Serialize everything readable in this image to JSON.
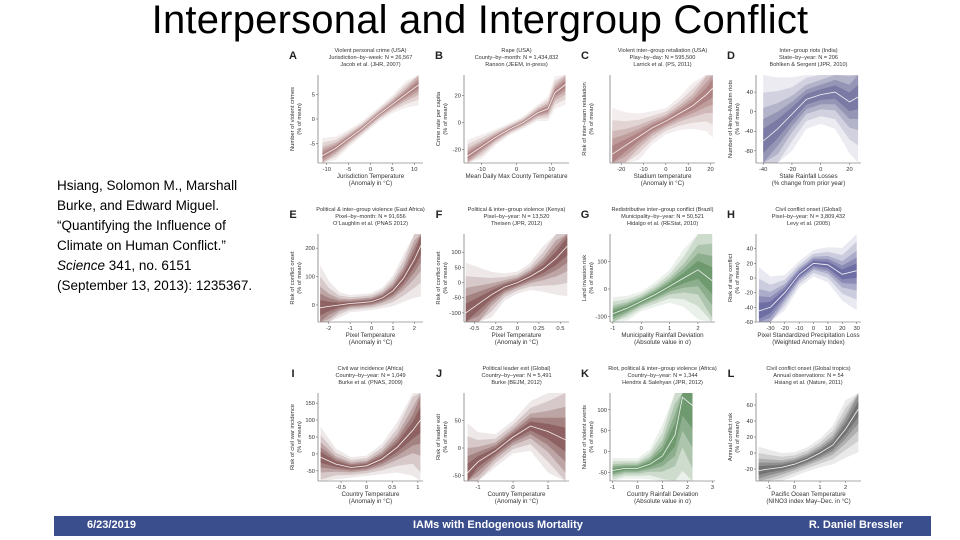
{
  "slide": {
    "title": "Interpersonal and Intergroup Conflict",
    "citation": {
      "authors": "Hsiang, Solomon M., Marshall Burke, and Edward Miguel.",
      "article": "“Quantifying the Influence of Climate on Human Conflict.”",
      "journal": "Science",
      "details": "341, no. 6151 (September 13, 2013): 1235367."
    },
    "footer": {
      "date": "6/23/2019",
      "center": "IAMs with Endogenous Mortality",
      "author": "R. Daniel Bressler"
    }
  },
  "chart_data": [
    {
      "panel": "A",
      "type": "area",
      "color": "#8b4a4a",
      "header": [
        "Violent personal crime (USA)",
        "Jurisdiction–by–week: N = 26,567",
        "Jacob et al. (JHR, 2007)"
      ],
      "ylabel": [
        "Number of violent crimes",
        "(% of mean)"
      ],
      "xlabel": [
        "Jurisdiction Temperature",
        "(Anomaly in °C)"
      ],
      "xlim": [
        -12,
        12
      ],
      "ylim": [
        -9,
        9
      ],
      "xticks": [
        -10,
        -5,
        0,
        5,
        10
      ],
      "yticks": [
        -5,
        0,
        5
      ],
      "x": [
        -11,
        -8,
        -5,
        -2,
        0,
        2,
        5,
        8,
        11
      ],
      "y": [
        -7.5,
        -6,
        -4,
        -2,
        -0.5,
        1,
        3,
        5,
        7
      ],
      "band": [
        1.2,
        0.8,
        0.6,
        0.5,
        0.5,
        0.5,
        0.6,
        0.9,
        1.4
      ]
    },
    {
      "panel": "B",
      "type": "area",
      "color": "#8b4a4a",
      "header": [
        "Rape (USA)",
        "County–by–month: N = 1,434,832",
        "Ranson (JEEM, in-press)"
      ],
      "ylabel": [
        "Crime rate per capita",
        "(% of mean)"
      ],
      "xlabel": [
        "Mean Daily Max County Temperature",
        ""
      ],
      "xlim": [
        -15,
        15
      ],
      "ylim": [
        -30,
        35
      ],
      "xticks": [
        -10,
        0,
        10
      ],
      "yticks": [
        -20,
        0,
        20
      ],
      "x": [
        -14,
        -10,
        -6,
        -2,
        2,
        6,
        9,
        11,
        14
      ],
      "y": [
        -25,
        -18,
        -11,
        -5,
        0,
        7,
        10,
        22,
        28
      ],
      "band": [
        4,
        3,
        2,
        1.5,
        1.5,
        2,
        3,
        4,
        5
      ]
    },
    {
      "panel": "C",
      "type": "area",
      "color": "#8b4a4a",
      "header": [
        "Violent inter–group retaliation (USA)",
        "Play–by–day: N = 595,500",
        "Larrick et al. (PS, 2011)"
      ],
      "ylabel": [
        "Risk of inter–team retaliation",
        "(% of mean)"
      ],
      "xlabel": [
        "Stadium temperature",
        "(Anomaly in °C)"
      ],
      "xlim": [
        -25,
        22
      ],
      "ylim": [
        -40,
        40
      ],
      "xticks": [
        -20,
        -10,
        0,
        10,
        20
      ],
      "yticks": [],
      "x": [
        -24,
        -18,
        -12,
        -6,
        0,
        6,
        12,
        18,
        21
      ],
      "y": [
        -32,
        -24,
        -16,
        -8,
        -2,
        5,
        12,
        22,
        28
      ],
      "band": [
        14,
        10,
        7,
        5,
        4,
        5,
        7,
        11,
        15
      ]
    },
    {
      "panel": "D",
      "type": "area",
      "color": "#3d3d7a",
      "header": [
        "Inter–group riots (India)",
        "State–by–year: N = 206",
        "Bohlken & Sergent (JPR, 2010)"
      ],
      "ylabel": [
        "Number of Hindu–Muslim riots",
        "(% of mean)"
      ],
      "xlabel": [
        "State Rainfall Losses",
        "(% change from prior year)"
      ],
      "xlim": [
        -45,
        28
      ],
      "ylim": [
        -105,
        75
      ],
      "xticks": [
        -40,
        -20,
        0,
        20
      ],
      "yticks": [
        -80,
        -40,
        0,
        40
      ],
      "x": [
        -40,
        -30,
        -20,
        -10,
        0,
        10,
        20,
        26
      ],
      "y": [
        -60,
        -35,
        -5,
        25,
        35,
        40,
        20,
        30
      ],
      "band": [
        45,
        35,
        25,
        20,
        20,
        25,
        35,
        45
      ]
    },
    {
      "panel": "E",
      "type": "area",
      "color": "#5a1a1a",
      "header": [
        "Political & inter–group violence (East Africa)",
        "Pixel–by–month: N = 91,656",
        "O’Laughlin et al. (PNAS 2012)"
      ],
      "ylabel": [
        "Risk of conflict onset",
        "(% of mean)"
      ],
      "xlabel": [
        "Pixel Temperature",
        "(Anomaly in °C)"
      ],
      "xlim": [
        -2.5,
        2.4
      ],
      "ylim": [
        -60,
        250
      ],
      "xticks": [
        -2,
        -1,
        0,
        1,
        2
      ],
      "yticks": [
        0,
        100,
        200
      ],
      "x": [
        -2.4,
        -2,
        -1.5,
        -1,
        -0.5,
        0,
        0.5,
        1,
        1.5,
        2,
        2.3
      ],
      "y": [
        -10,
        -5,
        0,
        5,
        8,
        12,
        25,
        50,
        95,
        160,
        210
      ],
      "band": [
        50,
        30,
        15,
        10,
        10,
        10,
        12,
        18,
        28,
        45,
        60
      ]
    },
    {
      "panel": "F",
      "type": "area",
      "color": "#5a1a1a",
      "header": [
        "Political & inter–group violence (Kenya)",
        "Pixel–by–year: N = 13,520",
        "Theisen (JPR, 2012)"
      ],
      "ylabel": [
        "Risk of conflict onset",
        "(% of mean)"
      ],
      "xlabel": [
        "Pixel Temperature",
        "(Anomaly in °C)"
      ],
      "xlim": [
        -0.62,
        0.6
      ],
      "ylim": [
        -130,
        160
      ],
      "xticks": [
        -0.5,
        -0.25,
        0,
        0.25,
        0.5
      ],
      "yticks": [
        -100,
        -50,
        0,
        50,
        100
      ],
      "x": [
        -0.6,
        -0.45,
        -0.3,
        -0.15,
        0,
        0.15,
        0.3,
        0.45,
        0.58
      ],
      "y": [
        -100,
        -70,
        -40,
        -15,
        0,
        20,
        45,
        80,
        120
      ],
      "band": [
        55,
        40,
        25,
        15,
        12,
        15,
        25,
        40,
        55
      ]
    },
    {
      "panel": "G",
      "type": "area",
      "color": "#2d6b2d",
      "header": [
        "Redistributive inter–group conflict (Brazil)",
        "Municipality–by–year: N = 50,521",
        "Hidalgo et al. (REStat, 2010)"
      ],
      "ylabel": [
        "Land invasion risk",
        "(% of mean)"
      ],
      "xlabel": [
        "Municipality Rainfall Deviation",
        "(Absolute value in σ)"
      ],
      "xlim": [
        -1.1,
        2.6
      ],
      "ylim": [
        -120,
        200
      ],
      "xticks": [
        -1,
        0,
        1,
        2
      ],
      "yticks": [
        -100,
        0,
        100
      ],
      "x": [
        -1,
        -0.5,
        0,
        0.5,
        1,
        1.5,
        2,
        2.5
      ],
      "y": [
        -90,
        -70,
        -45,
        -20,
        10,
        40,
        70,
        30
      ],
      "band": [
        20,
        15,
        12,
        15,
        20,
        35,
        60,
        90
      ]
    },
    {
      "panel": "H",
      "type": "area",
      "color": "#2a2a7a",
      "header": [
        "Civil conflict onset (Global)",
        "Pixel–by–year: N = 3,809,432",
        "Levy et al. (2005)"
      ],
      "ylabel": [
        "Risk of any conflict",
        "(% of mean)"
      ],
      "xlabel": [
        "Pixel Standardized Precipitation Loss",
        "(Weighted Anomaly Index)"
      ],
      "xlim": [
        -40,
        33
      ],
      "ylim": [
        -60,
        60
      ],
      "xticks": [
        -30,
        -20,
        -10,
        0,
        10,
        20,
        30
      ],
      "yticks": [
        -60,
        -40,
        -20,
        0,
        20,
        40
      ],
      "x": [
        -38,
        -30,
        -20,
        -10,
        0,
        10,
        20,
        30
      ],
      "y": [
        -45,
        -40,
        -20,
        5,
        20,
        18,
        5,
        10
      ],
      "band": [
        20,
        14,
        8,
        6,
        6,
        8,
        12,
        18
      ]
    },
    {
      "panel": "I",
      "type": "area",
      "color": "#5a1a1a",
      "header": [
        "Civil war incidence (Africa)",
        "Country–by–year: N = 1,049",
        "Burke et al. (PNAS, 2009)"
      ],
      "ylabel": [
        "Risk of civil war incidence",
        "(% of mean)"
      ],
      "xlabel": [
        "Country Temperature",
        "(Anomaly in °C)"
      ],
      "xlim": [
        -0.95,
        1.1
      ],
      "ylim": [
        -80,
        180
      ],
      "xticks": [
        -0.5,
        0,
        0.5,
        1
      ],
      "yticks": [
        -50,
        0,
        50,
        100,
        150
      ],
      "x": [
        -0.9,
        -0.6,
        -0.3,
        0,
        0.3,
        0.6,
        0.9,
        1.05
      ],
      "y": [
        -10,
        -30,
        -40,
        -35,
        -15,
        20,
        70,
        100
      ],
      "band": [
        30,
        15,
        10,
        10,
        15,
        25,
        45,
        70
      ]
    },
    {
      "panel": "J",
      "type": "area",
      "color": "#5a1a1a",
      "header": [
        "Political leader exit (Global)",
        "Country–by–year: N = 5,491",
        "Burke (BEJM, 2012)"
      ],
      "ylabel": [
        "Risk of leader exit",
        "(% of mean)"
      ],
      "xlabel": [
        "Country Temperature",
        "(Anomaly in °C)"
      ],
      "xlim": [
        -1.4,
        1.6
      ],
      "ylim": [
        -60,
        100
      ],
      "xticks": [
        -1,
        0,
        1
      ],
      "yticks": [
        -50,
        0,
        50
      ],
      "x": [
        -1.3,
        -1,
        -0.5,
        0,
        0.5,
        1,
        1.5
      ],
      "y": [
        -45,
        -25,
        -5,
        20,
        40,
        30,
        15
      ],
      "band": [
        30,
        18,
        10,
        10,
        15,
        25,
        40
      ]
    },
    {
      "panel": "K",
      "type": "area",
      "color": "#2d6b2d",
      "header": [
        "Riot, political & inter–group violence (Africa)",
        "Country–by–year: N = 1,344",
        "Hendrix & Salehyan (JPR, 2012)"
      ],
      "ylabel": [
        "Number of violent events",
        "(% of mean)"
      ],
      "xlabel": [
        "Country Rainfall Deviation",
        "(Absolute value in σ)"
      ],
      "xlim": [
        -1.1,
        3.1
      ],
      "ylim": [
        -70,
        140
      ],
      "xticks": [
        -1,
        0,
        1,
        2,
        3
      ],
      "yticks": [
        -50,
        0,
        50,
        100
      ],
      "x": [
        -1,
        -0.5,
        0,
        0.5,
        1,
        1.5,
        1.8,
        2.2
      ],
      "y": [
        -45,
        -40,
        -40,
        -30,
        -10,
        40,
        130,
        110
      ],
      "band": [
        10,
        8,
        8,
        12,
        25,
        50,
        80,
        100
      ]
    },
    {
      "panel": "L",
      "type": "area",
      "color": "#333333",
      "header": [
        "Civil conflict onset (Global tropics)",
        "Annual observations: N = 54",
        "Hsiang et al. (Nature, 2011)"
      ],
      "ylabel": [
        "Annual conflict risk",
        "(% of mean)"
      ],
      "xlabel": [
        "Pacific Ocean Temperature",
        "(NINO3 index May–Dec. in °C)"
      ],
      "xlim": [
        -1.5,
        2.6
      ],
      "ylim": [
        -35,
        75
      ],
      "xticks": [
        -1,
        0,
        1,
        2
      ],
      "yticks": [
        -20,
        0,
        20,
        40,
        60
      ],
      "x": [
        -1.4,
        -1,
        -0.5,
        0,
        0.5,
        1,
        1.5,
        2,
        2.5
      ],
      "y": [
        -22,
        -20,
        -18,
        -14,
        -8,
        0,
        10,
        30,
        55
      ],
      "band": [
        10,
        8,
        6,
        5,
        5,
        6,
        8,
        12,
        18
      ]
    }
  ]
}
